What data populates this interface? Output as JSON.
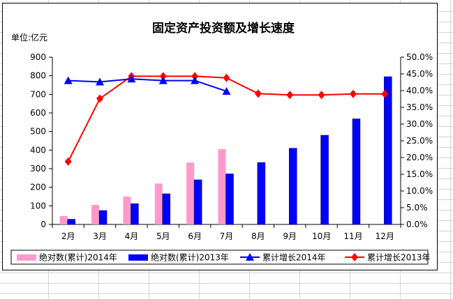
{
  "chart_data": {
    "type": "bar+line",
    "title": "固定资产投资额及增长速度",
    "unit_label": "单位:亿元",
    "categories": [
      "2月",
      "3月",
      "4月",
      "5月",
      "6月",
      "7月",
      "8月",
      "9月",
      "10月",
      "11月",
      "12月"
    ],
    "left_axis": {
      "min": 0,
      "max": 900,
      "step": 100,
      "tick_labels": [
        "0",
        "100",
        "200",
        "300",
        "400",
        "500",
        "600",
        "700",
        "800",
        "900"
      ]
    },
    "right_axis": {
      "min": 0,
      "max": 50,
      "step": 5,
      "tick_labels": [
        "0.0%",
        "5.0%",
        "10.0%",
        "15.0%",
        "20.0%",
        "25.0%",
        "30.0%",
        "35.0%",
        "40.0%",
        "45.0%",
        "50.0%"
      ]
    },
    "series": [
      {
        "name": "绝对数(累计)2014年",
        "kind": "bar",
        "axis": "left",
        "color": "#ff99cc",
        "values": [
          45,
          105,
          150,
          220,
          333,
          405,
          null,
          null,
          null,
          null,
          null
        ]
      },
      {
        "name": "绝对数(累计)2013年",
        "kind": "bar",
        "axis": "left",
        "color": "#0000ff",
        "values": [
          28,
          75,
          112,
          165,
          240,
          272,
          333,
          410,
          480,
          568,
          795
        ]
      },
      {
        "name": "累计增长2014年",
        "kind": "line",
        "axis": "right",
        "color": "#0000ff",
        "marker": "triangle",
        "values": [
          43.0,
          42.6,
          43.5,
          43.0,
          43.0,
          39.8,
          null,
          null,
          null,
          null,
          null
        ]
      },
      {
        "name": "累计增长2013年",
        "kind": "line",
        "axis": "right",
        "color": "#ff0000",
        "marker": "diamond",
        "values": [
          18.8,
          37.6,
          44.3,
          44.3,
          44.3,
          43.8,
          39.1,
          38.7,
          38.7,
          39.0,
          39.0
        ]
      }
    ],
    "legend_position": "bottom",
    "grid": false
  },
  "colors": {
    "sheet_grid": "#d4d4d4",
    "axis": "#000000",
    "frame": "#000000"
  }
}
